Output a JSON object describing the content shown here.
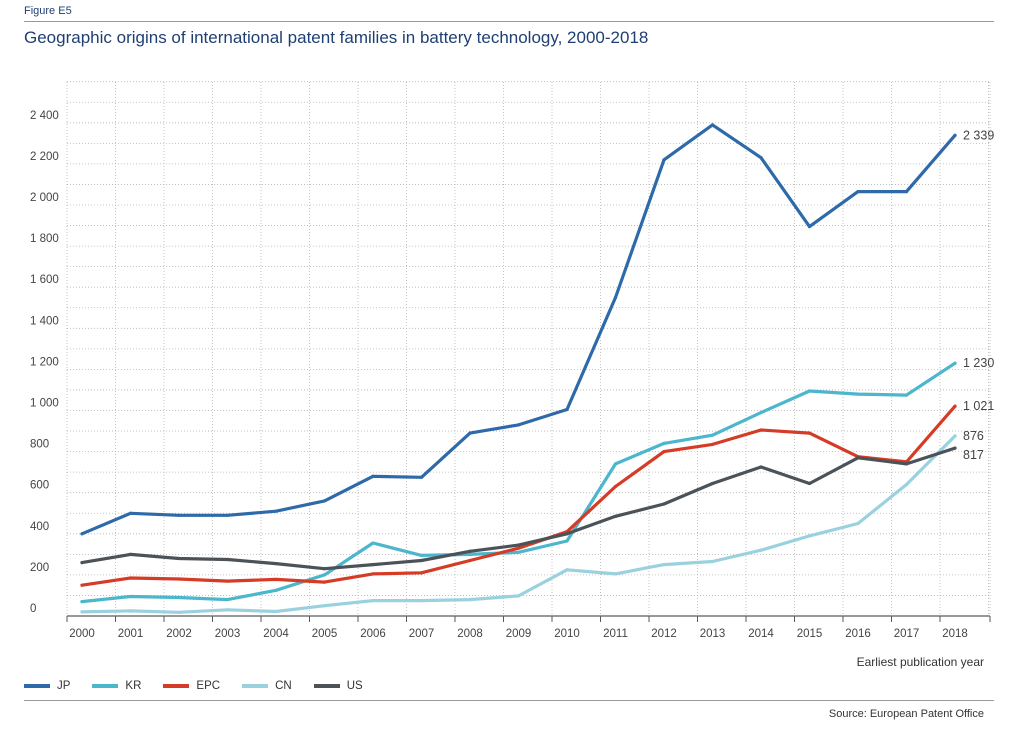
{
  "figure": {
    "label": "Figure E5",
    "title": "Geographic origins of international patent families in battery technology, 2000-2018",
    "source": "Source: European Patent Office"
  },
  "chart_data": {
    "type": "line",
    "title": "Geographic origins of international patent families in battery technology, 2000-2018",
    "xlabel": "Earliest publication year",
    "ylabel": "",
    "x": [
      2000,
      2001,
      2002,
      2003,
      2004,
      2005,
      2006,
      2007,
      2008,
      2009,
      2010,
      2011,
      2012,
      2013,
      2014,
      2015,
      2016,
      2017,
      2018
    ],
    "ylim": [
      0,
      2400
    ],
    "yticks": [
      0,
      200,
      400,
      600,
      800,
      1000,
      1200,
      1400,
      1600,
      1800,
      2000,
      2200,
      2400
    ],
    "ytick_labels": [
      "0",
      "200",
      "400",
      "600",
      "800",
      "1 000",
      "1 200",
      "1 400",
      "1 600",
      "1 800",
      "2 000",
      "2 200",
      "2 400"
    ],
    "grid": true,
    "legend_position": "bottom",
    "series": [
      {
        "name": "JP",
        "color": "#2e6aa9",
        "end_label": "2 339",
        "values": [
          400,
          500,
          490,
          490,
          510,
          560,
          680,
          675,
          890,
          930,
          1005,
          1550,
          2220,
          2390,
          2230,
          1895,
          2065,
          2065,
          2339
        ]
      },
      {
        "name": "KR",
        "color": "#4bb6cc",
        "end_label": "1 230",
        "values": [
          70,
          95,
          90,
          80,
          125,
          200,
          355,
          295,
          300,
          310,
          365,
          740,
          840,
          880,
          990,
          1095,
          1080,
          1075,
          1230
        ]
      },
      {
        "name": "EPC",
        "color": "#d63b26",
        "end_label": "1 021",
        "values": [
          150,
          185,
          180,
          170,
          178,
          165,
          205,
          210,
          270,
          330,
          410,
          630,
          800,
          835,
          905,
          890,
          775,
          750,
          1021
        ]
      },
      {
        "name": "CN",
        "color": "#9ad1df",
        "end_label": "876",
        "values": [
          20,
          25,
          18,
          30,
          22,
          50,
          75,
          75,
          80,
          98,
          225,
          205,
          250,
          265,
          320,
          390,
          450,
          640,
          876
        ]
      },
      {
        "name": "US",
        "color": "#4b5258",
        "end_label": "817",
        "values": [
          260,
          300,
          280,
          275,
          255,
          230,
          250,
          270,
          315,
          345,
          400,
          485,
          545,
          645,
          725,
          645,
          770,
          740,
          817
        ]
      }
    ]
  }
}
